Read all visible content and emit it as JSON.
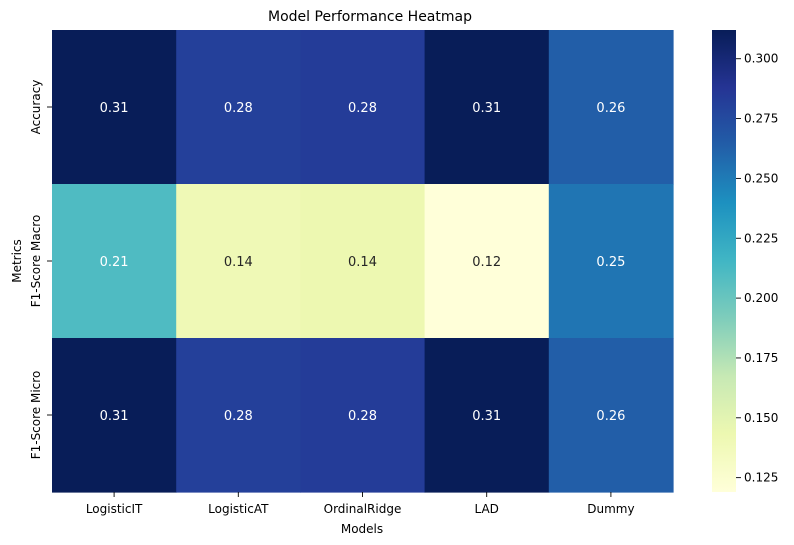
{
  "chart_data": {
    "type": "heatmap",
    "title": "Model Performance Heatmap",
    "xlabel": "Models",
    "ylabel": "Metrics",
    "x": [
      "LogisticIT",
      "LogisticAT",
      "OrdinalRidge",
      "LAD",
      "Dummy"
    ],
    "y": [
      "Accuracy",
      "F1-Score Macro",
      "F1-Score Micro"
    ],
    "values": [
      [
        0.312,
        0.281,
        0.283,
        0.312,
        0.264
      ],
      [
        0.21,
        0.14,
        0.143,
        0.119,
        0.253
      ],
      [
        0.312,
        0.281,
        0.283,
        0.312,
        0.264
      ]
    ],
    "labels": [
      [
        "0.31",
        "0.28",
        "0.28",
        "0.31",
        "0.26"
      ],
      [
        "0.21",
        "0.14",
        "0.14",
        "0.12",
        "0.25"
      ],
      [
        "0.31",
        "0.28",
        "0.28",
        "0.31",
        "0.26"
      ]
    ],
    "colormap": "YlGnBu",
    "colorbar": {
      "range": [
        0.119,
        0.312
      ],
      "ticks": [
        0.125,
        0.15,
        0.175,
        0.2,
        0.225,
        0.25,
        0.275,
        0.3
      ],
      "tick_labels": [
        "0.125",
        "0.150",
        "0.175",
        "0.200",
        "0.225",
        "0.250",
        "0.275",
        "0.300"
      ]
    },
    "grid": false,
    "legend": "colorbar-right"
  }
}
